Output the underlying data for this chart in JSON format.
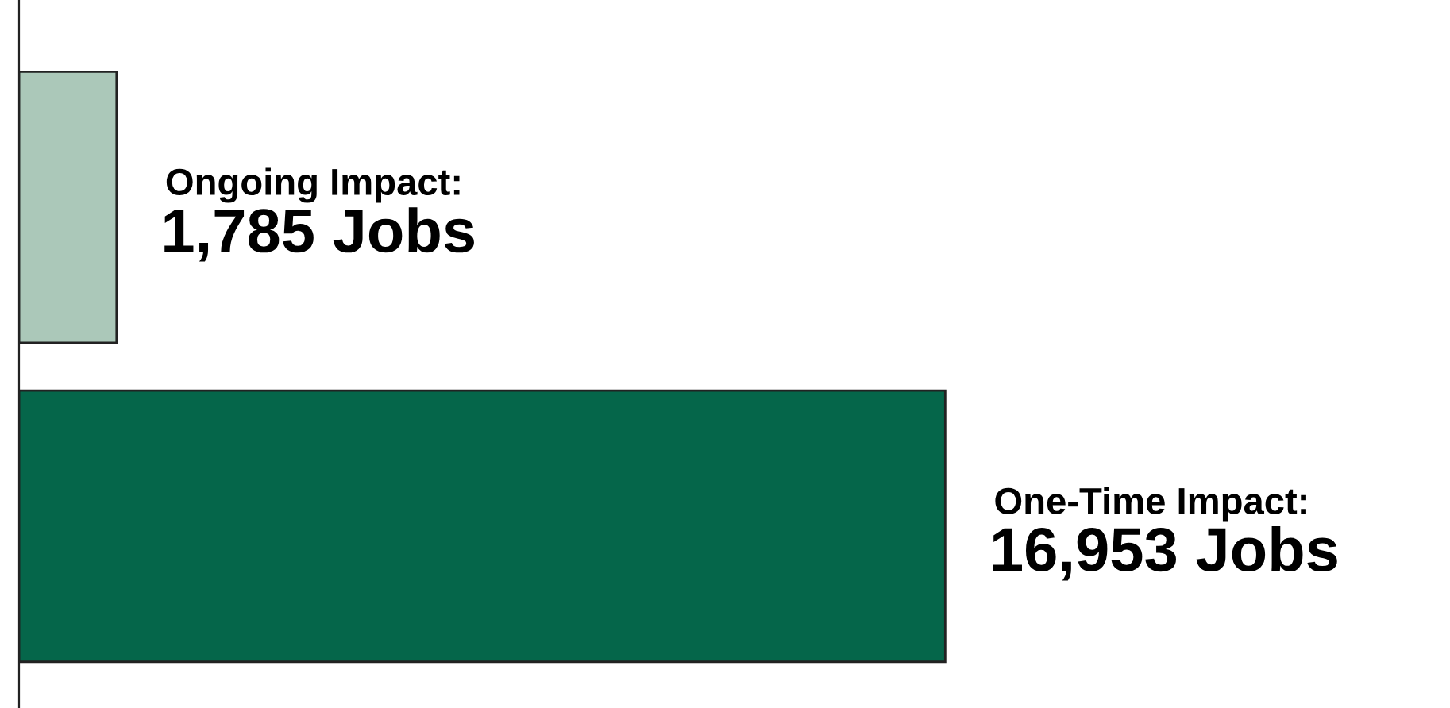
{
  "chart_data": {
    "type": "bar",
    "orientation": "horizontal",
    "categories": [
      null,
      null
    ],
    "annotations": [
      "Ongoing Impact:",
      "One-Time Impact:"
    ],
    "values": [
      1785,
      16953
    ],
    "colors": [
      "#abc8b9",
      "#05664a"
    ],
    "value_labels": [
      "1,785 Jobs",
      "16,953 Jobs"
    ]
  }
}
